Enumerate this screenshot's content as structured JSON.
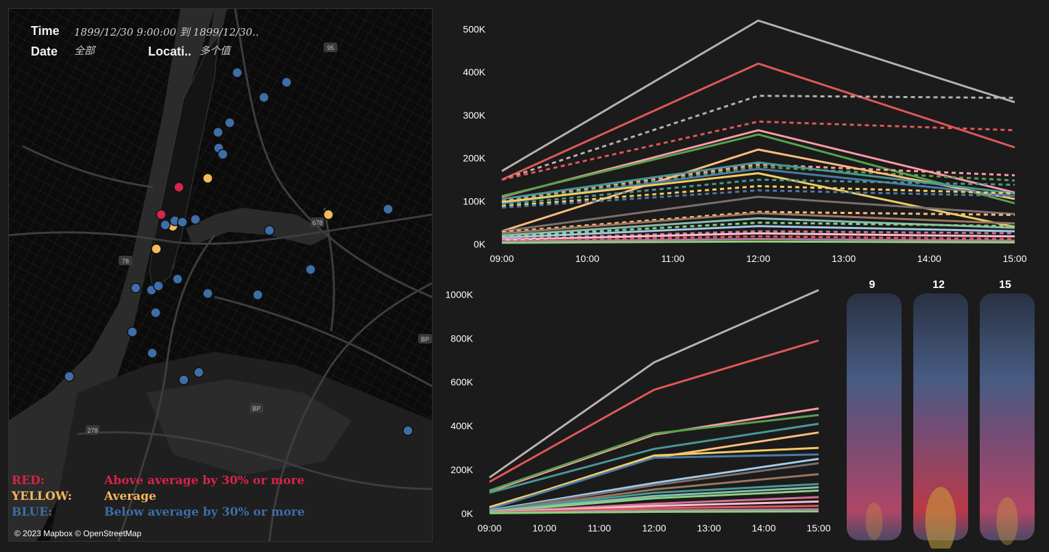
{
  "filters": {
    "time_label": "Time",
    "time_value": "1899/12/30 9:00:00 到 1899/12/30..",
    "date_label": "Date",
    "date_value": "全部",
    "location_label": "Locati..",
    "location_value": "多个值"
  },
  "legend": [
    {
      "key": "RED:",
      "text": "Above average by 30% or more",
      "color": "#d6244a"
    },
    {
      "key": "YELLOW:",
      "text": "Average",
      "color": "#f5b95c"
    },
    {
      "key": "BLUE:",
      "text": "Below average by 30% or more",
      "color": "#3d6ea8"
    }
  ],
  "attribution": "© 2023 Mapbox © OpenStreetMap",
  "map_labels": [
    "95",
    "678",
    "78",
    "278",
    "BP",
    "BP"
  ],
  "map_points": [
    {
      "category": "red"
    },
    {
      "category": "red"
    },
    {
      "category": "yellow"
    },
    {
      "category": "yellow"
    },
    {
      "category": "yellow"
    },
    {
      "category": "yellow"
    },
    {
      "category": "blue"
    },
    {
      "category": "blue"
    },
    {
      "category": "blue"
    },
    {
      "category": "blue"
    },
    {
      "category": "blue"
    },
    {
      "category": "blue"
    },
    {
      "category": "blue"
    },
    {
      "category": "blue"
    },
    {
      "category": "blue"
    },
    {
      "category": "blue"
    },
    {
      "category": "blue"
    },
    {
      "category": "blue"
    },
    {
      "category": "blue"
    },
    {
      "category": "blue"
    },
    {
      "category": "blue"
    },
    {
      "category": "blue"
    },
    {
      "category": "blue"
    },
    {
      "category": "blue"
    },
    {
      "category": "blue"
    },
    {
      "category": "blue"
    },
    {
      "category": "blue"
    },
    {
      "category": "blue"
    },
    {
      "category": "blue"
    },
    {
      "category": "blue"
    },
    {
      "category": "blue"
    },
    {
      "category": "blue"
    },
    {
      "category": "blue"
    }
  ],
  "chart_data": [
    {
      "type": "line",
      "x": [
        "09:00",
        "10:00",
        "11:00",
        "12:00",
        "13:00",
        "14:00",
        "15:00"
      ],
      "yticks": [
        "500K",
        "400K",
        "300K",
        "200K",
        "100K",
        "0K"
      ],
      "ylim": [
        0,
        520000
      ],
      "grid": false,
      "series": [
        {
          "color": "#bab0ac",
          "dashed": false,
          "points": [
            [
              0,
              170000
            ],
            [
              3,
              520000
            ],
            [
              6,
              330000
            ]
          ]
        },
        {
          "color": "#e15759",
          "dashed": false,
          "points": [
            [
              0,
              150000
            ],
            [
              3,
              420000
            ],
            [
              6,
              225000
            ]
          ]
        },
        {
          "color": "#bab0ac",
          "dashed": true,
          "points": [
            [
              0,
              150000
            ],
            [
              3,
              345000
            ],
            [
              6,
              340000
            ]
          ]
        },
        {
          "color": "#e15759",
          "dashed": true,
          "points": [
            [
              0,
              150000
            ],
            [
              3,
              285000
            ],
            [
              6,
              265000
            ]
          ]
        },
        {
          "color": "#ff9da7",
          "dashed": false,
          "points": [
            [
              0,
              110000
            ],
            [
              3,
              265000
            ],
            [
              6,
              120000
            ]
          ]
        },
        {
          "color": "#59a14f",
          "dashed": false,
          "points": [
            [
              0,
              112000
            ],
            [
              3,
              255000
            ],
            [
              6,
              95000
            ]
          ]
        },
        {
          "color": "#ff9da7",
          "dashed": true,
          "points": [
            [
              0,
              100000
            ],
            [
              3,
              185000
            ],
            [
              6,
              160000
            ]
          ]
        },
        {
          "color": "#59a14f",
          "dashed": true,
          "points": [
            [
              0,
              98000
            ],
            [
              3,
              180000
            ],
            [
              6,
              148000
            ]
          ]
        },
        {
          "color": "#ffbe7d",
          "dashed": false,
          "points": [
            [
              0,
              30000
            ],
            [
              3,
              220000
            ],
            [
              6,
              105000
            ]
          ]
        },
        {
          "color": "#499894",
          "dashed": false,
          "points": [
            [
              0,
              105000
            ],
            [
              3,
              190000
            ],
            [
              6,
              118000
            ]
          ]
        },
        {
          "color": "#4e79a7",
          "dashed": false,
          "points": [
            [
              0,
              95000
            ],
            [
              3,
              175000
            ],
            [
              6,
              112000
            ]
          ]
        },
        {
          "color": "#f1ce63",
          "dashed": false,
          "points": [
            [
              0,
              98000
            ],
            [
              3,
              165000
            ],
            [
              6,
              40000
            ]
          ]
        },
        {
          "color": "#499894",
          "dashed": true,
          "points": [
            [
              0,
              92000
            ],
            [
              3,
              150000
            ],
            [
              6,
              138000
            ]
          ]
        },
        {
          "color": "#f1ce63",
          "dashed": true,
          "points": [
            [
              0,
              88000
            ],
            [
              3,
              135000
            ],
            [
              6,
              118000
            ]
          ]
        },
        {
          "color": "#4e79a7",
          "dashed": true,
          "points": [
            [
              0,
              85000
            ],
            [
              3,
              125000
            ],
            [
              6,
              112000
            ]
          ]
        },
        {
          "color": "#79706e",
          "dashed": false,
          "points": [
            [
              0,
              30000
            ],
            [
              3,
              110000
            ],
            [
              6,
              70000
            ]
          ]
        },
        {
          "color": "#ffbe7d",
          "dashed": true,
          "points": [
            [
              0,
              28000
            ],
            [
              3,
              75000
            ],
            [
              6,
              68000
            ]
          ]
        },
        {
          "color": "#9c755f",
          "dashed": false,
          "points": [
            [
              0,
              25000
            ],
            [
              3,
              72000
            ],
            [
              6,
              48000
            ]
          ]
        },
        {
          "color": "#86bcb6",
          "dashed": false,
          "points": [
            [
              0,
              20000
            ],
            [
              3,
              60000
            ],
            [
              6,
              38000
            ]
          ]
        },
        {
          "color": "#8cd17d",
          "dashed": true,
          "points": [
            [
              0,
              18000
            ],
            [
              3,
              50000
            ],
            [
              6,
              42000
            ]
          ]
        },
        {
          "color": "#a0cbe8",
          "dashed": false,
          "points": [
            [
              0,
              15000
            ],
            [
              3,
              42000
            ],
            [
              6,
              30000
            ]
          ]
        },
        {
          "color": "#d37295",
          "dashed": true,
          "points": [
            [
              0,
              12000
            ],
            [
              3,
              30000
            ],
            [
              6,
              25000
            ]
          ]
        },
        {
          "color": "#fabfd2",
          "dashed": false,
          "points": [
            [
              0,
              10000
            ],
            [
              3,
              25000
            ],
            [
              6,
              18000
            ]
          ]
        },
        {
          "color": "#e15759",
          "dashed": true,
          "points": [
            [
              0,
              8000
            ],
            [
              3,
              18000
            ],
            [
              6,
              12000
            ]
          ]
        },
        {
          "color": "#b07aa1",
          "dashed": false,
          "points": [
            [
              0,
              6000
            ],
            [
              3,
              12000
            ],
            [
              6,
              8000
            ]
          ]
        },
        {
          "color": "#8cd17d",
          "dashed": false,
          "points": [
            [
              0,
              3000
            ],
            [
              3,
              6000
            ],
            [
              6,
              4000
            ]
          ]
        }
      ]
    },
    {
      "type": "line",
      "x": [
        "09:00",
        "10:00",
        "11:00",
        "12:00",
        "13:00",
        "14:00",
        "15:00"
      ],
      "yticks": [
        "1000K",
        "800K",
        "600K",
        "400K",
        "200K",
        "0K"
      ],
      "ylim": [
        0,
        1020000
      ],
      "grid": false,
      "series": [
        {
          "color": "#bab0ac",
          "points": [
            [
              0,
              165000
            ],
            [
              3,
              690000
            ],
            [
              6,
              1020000
            ]
          ]
        },
        {
          "color": "#e15759",
          "points": [
            [
              0,
              145000
            ],
            [
              3,
              565000
            ],
            [
              6,
              790000
            ]
          ]
        },
        {
          "color": "#ff9da7",
          "points": [
            [
              0,
              100000
            ],
            [
              3,
              360000
            ],
            [
              6,
              480000
            ]
          ]
        },
        {
          "color": "#59a14f",
          "points": [
            [
              0,
              105000
            ],
            [
              3,
              365000
            ],
            [
              6,
              450000
            ]
          ]
        },
        {
          "color": "#499894",
          "points": [
            [
              0,
              95000
            ],
            [
              3,
              295000
            ],
            [
              6,
              410000
            ]
          ]
        },
        {
          "color": "#ffbe7d",
          "points": [
            [
              0,
              30000
            ],
            [
              3,
              255000
            ],
            [
              6,
              370000
            ]
          ]
        },
        {
          "color": "#f1ce63",
          "points": [
            [
              0,
              25000
            ],
            [
              3,
              265000
            ],
            [
              6,
              300000
            ]
          ]
        },
        {
          "color": "#4e79a7",
          "points": [
            [
              0,
              20000
            ],
            [
              3,
              255000
            ],
            [
              6,
              270000
            ]
          ]
        },
        {
          "color": "#a0cbe8",
          "points": [
            [
              0,
              15000
            ],
            [
              3,
              140000
            ],
            [
              6,
              250000
            ]
          ]
        },
        {
          "color": "#79706e",
          "points": [
            [
              0,
              12000
            ],
            [
              3,
              130000
            ],
            [
              6,
              230000
            ]
          ]
        },
        {
          "color": "#9c755f",
          "points": [
            [
              0,
              10000
            ],
            [
              3,
              110000
            ],
            [
              6,
              180000
            ]
          ]
        },
        {
          "color": "#499894",
          "points": [
            [
              0,
              12000
            ],
            [
              3,
              95000
            ],
            [
              6,
              135000
            ]
          ]
        },
        {
          "color": "#86bcb6",
          "points": [
            [
              0,
              10000
            ],
            [
              3,
              80000
            ],
            [
              6,
              120000
            ]
          ]
        },
        {
          "color": "#8cd17d",
          "points": [
            [
              0,
              8000
            ],
            [
              3,
              70000
            ],
            [
              6,
              105000
            ]
          ]
        },
        {
          "color": "#d37295",
          "points": [
            [
              0,
              6000
            ],
            [
              3,
              45000
            ],
            [
              6,
              75000
            ]
          ]
        },
        {
          "color": "#fabfd2",
          "points": [
            [
              0,
              5000
            ],
            [
              3,
              35000
            ],
            [
              6,
              55000
            ]
          ]
        },
        {
          "color": "#e15759",
          "points": [
            [
              0,
              4000
            ],
            [
              3,
              25000
            ],
            [
              6,
              35000
            ]
          ]
        },
        {
          "color": "#b07aa1",
          "points": [
            [
              0,
              3000
            ],
            [
              3,
              15000
            ],
            [
              6,
              20000
            ]
          ]
        },
        {
          "color": "#8cd17d",
          "points": [
            [
              0,
              2000
            ],
            [
              3,
              8000
            ],
            [
              6,
              10000
            ]
          ]
        }
      ]
    },
    {
      "type": "heatmap",
      "columns": [
        "9",
        "12",
        "15"
      ],
      "intensity": [
        0.55,
        1.0,
        0.7
      ]
    }
  ]
}
